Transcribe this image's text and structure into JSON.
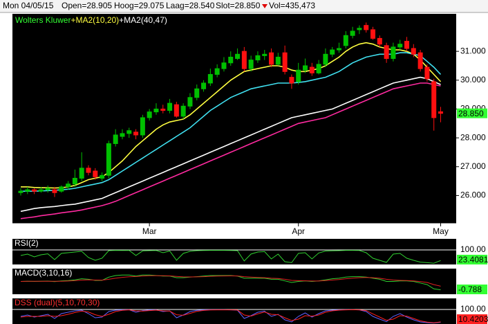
{
  "header": {
    "date": "Mon 04/05/15",
    "open": "Open=28.905",
    "high": "Hoog=29.075",
    "low": "Laag=28.540",
    "close": "Slot=28.850",
    "volume": "Vol=435,473"
  },
  "chart_data": [
    {
      "type": "candlestick",
      "title": "Wolters Kluwer",
      "legend": [
        "+MA2(10,20)",
        "+MA2(40,47)"
      ],
      "title_color": "#33ff33",
      "categories": [
        null,
        null,
        null,
        null,
        null,
        null,
        null,
        null,
        null,
        null,
        null,
        null,
        null,
        null,
        null,
        null,
        null,
        null,
        null,
        "Mar",
        null,
        null,
        null,
        null,
        null,
        null,
        null,
        null,
        null,
        null,
        null,
        null,
        null,
        null,
        null,
        null,
        null,
        null,
        null,
        null,
        null,
        "Apr",
        null,
        null,
        null,
        null,
        null,
        null,
        null,
        null,
        null,
        null,
        null,
        null,
        null,
        null,
        null,
        null,
        null,
        null,
        null,
        null,
        "May"
      ],
      "open": [
        26.1,
        26.15,
        26.2,
        26.15,
        26.2,
        26.2,
        26.15,
        26.3,
        26.4,
        26.6,
        26.95,
        26.85,
        26.6,
        26.7,
        27.8,
        28.05,
        28.15,
        28.2,
        28.1,
        28.7,
        28.9,
        29.0,
        28.95,
        29.15,
        28.75,
        29.1,
        29.4,
        29.7,
        29.9,
        30.2,
        30.4,
        30.6,
        30.75,
        31.0,
        30.4,
        30.7,
        30.85,
        30.95,
        30.55,
        30.95,
        30.1,
        29.95,
        30.35,
        30.45,
        30.25,
        30.55,
        30.9,
        31.05,
        31.2,
        31.55,
        31.75,
        31.9,
        31.75,
        31.45,
        31.2,
        30.75,
        31.15,
        31.35,
        31.1,
        30.95,
        30.45,
        29.95,
        28.905
      ],
      "high": [
        26.25,
        26.3,
        26.25,
        26.3,
        26.35,
        26.3,
        26.35,
        26.5,
        26.9,
        27.5,
        27.05,
        26.95,
        26.8,
        27.9,
        28.3,
        28.3,
        28.35,
        28.3,
        28.8,
        29.0,
        29.2,
        29.15,
        29.35,
        29.25,
        29.2,
        29.55,
        29.85,
        30.0,
        30.4,
        30.55,
        30.8,
        31.0,
        31.1,
        31.15,
        30.85,
        31.0,
        31.05,
        31.1,
        30.95,
        31.2,
        30.2,
        30.6,
        30.75,
        30.6,
        30.7,
        31.1,
        31.15,
        31.3,
        31.7,
        31.85,
        31.9,
        32.0,
        31.85,
        31.55,
        31.3,
        31.3,
        31.4,
        31.5,
        31.25,
        31.05,
        30.55,
        30.05,
        29.075
      ],
      "low": [
        26.0,
        26.05,
        26.05,
        26.1,
        26.1,
        25.95,
        26.1,
        26.2,
        26.3,
        26.5,
        26.7,
        26.55,
        26.5,
        26.6,
        27.7,
        27.95,
        28.0,
        27.95,
        28.0,
        28.6,
        28.8,
        28.85,
        28.85,
        28.7,
        28.65,
        29.0,
        29.3,
        29.6,
        29.8,
        30.1,
        30.3,
        30.5,
        30.7,
        30.3,
        30.3,
        30.6,
        30.7,
        30.45,
        30.5,
        30.2,
        29.7,
        29.85,
        30.25,
        30.15,
        30.2,
        30.45,
        30.8,
        30.95,
        31.1,
        31.45,
        31.6,
        31.65,
        31.4,
        31.15,
        30.6,
        30.65,
        31.05,
        31.0,
        30.8,
        30.3,
        29.95,
        28.25,
        28.54
      ],
      "close": [
        26.15,
        26.2,
        26.15,
        26.2,
        26.25,
        26.1,
        26.3,
        26.4,
        26.6,
        26.95,
        26.8,
        26.65,
        26.7,
        27.8,
        28.1,
        28.15,
        28.25,
        28.1,
        28.7,
        28.9,
        29.0,
        28.95,
        29.2,
        28.75,
        29.1,
        29.4,
        29.7,
        29.9,
        30.2,
        30.4,
        30.6,
        30.8,
        30.9,
        30.4,
        30.7,
        30.85,
        30.9,
        30.55,
        30.8,
        30.3,
        29.9,
        30.35,
        30.5,
        30.25,
        30.55,
        30.9,
        31.05,
        31.1,
        31.55,
        31.7,
        31.8,
        31.75,
        31.45,
        31.25,
        30.75,
        31.15,
        31.25,
        31.1,
        30.9,
        30.4,
        30.05,
        28.7,
        28.85
      ],
      "up_color": "#00c000",
      "down_color": "#ff1010",
      "last_price_label": "28.850",
      "last_price_color": "#33ff33",
      "series": [
        {
          "color": "#ffff40",
          "values": [
            26.3,
            26.3,
            26.28,
            26.27,
            26.27,
            26.26,
            26.27,
            26.3,
            26.35,
            26.45,
            26.55,
            26.6,
            26.65,
            26.8,
            27.0,
            27.2,
            27.45,
            27.7,
            27.9,
            28.1,
            28.3,
            28.45,
            28.55,
            28.6,
            28.65,
            28.8,
            29.0,
            29.2,
            29.4,
            29.6,
            29.8,
            30.0,
            30.15,
            30.3,
            30.35,
            30.4,
            30.45,
            30.5,
            30.5,
            30.45,
            30.35,
            30.3,
            30.3,
            30.35,
            30.4,
            30.5,
            30.65,
            30.8,
            31.0,
            31.15,
            31.25,
            31.3,
            31.25,
            31.15,
            31.1,
            31.05,
            31.05,
            31.0,
            30.9,
            30.7,
            30.45,
            30.2,
            29.95
          ]
        },
        {
          "color": "#40e0f0",
          "values": [
            26.15,
            26.15,
            26.15,
            26.16,
            26.17,
            26.18,
            26.2,
            26.22,
            26.25,
            26.3,
            26.35,
            26.4,
            26.45,
            26.55,
            26.7,
            26.85,
            27.0,
            27.15,
            27.3,
            27.45,
            27.6,
            27.75,
            27.9,
            28.05,
            28.2,
            28.35,
            28.55,
            28.75,
            28.95,
            29.1,
            29.25,
            29.4,
            29.5,
            29.6,
            29.7,
            29.75,
            29.8,
            29.85,
            29.9,
            29.9,
            29.9,
            29.92,
            29.95,
            30.0,
            30.05,
            30.1,
            30.2,
            30.3,
            30.45,
            30.6,
            30.7,
            30.8,
            30.85,
            30.9,
            30.9,
            30.9,
            30.95,
            30.95,
            30.9,
            30.85,
            30.65,
            30.45,
            30.2
          ]
        },
        {
          "color": "#ffffff",
          "values": [
            25.45,
            25.5,
            25.55,
            25.58,
            25.6,
            25.62,
            25.65,
            25.68,
            25.7,
            25.75,
            25.8,
            25.85,
            25.9,
            26.0,
            26.1,
            26.2,
            26.3,
            26.4,
            26.5,
            26.6,
            26.7,
            26.8,
            26.9,
            27.0,
            27.1,
            27.2,
            27.3,
            27.4,
            27.5,
            27.6,
            27.7,
            27.8,
            27.9,
            28.0,
            28.1,
            28.2,
            28.3,
            28.4,
            28.5,
            28.6,
            28.7,
            28.75,
            28.8,
            28.85,
            28.9,
            28.95,
            29.0,
            29.1,
            29.2,
            29.3,
            29.4,
            29.5,
            29.6,
            29.7,
            29.8,
            29.9,
            29.95,
            30.0,
            30.05,
            30.1,
            30.05,
            29.95,
            29.85
          ]
        },
        {
          "color": "#ff2aa0",
          "values": [
            25.2,
            25.23,
            25.26,
            25.3,
            25.33,
            25.36,
            25.4,
            25.43,
            25.46,
            25.5,
            25.55,
            25.6,
            25.65,
            25.72,
            25.8,
            25.9,
            26.0,
            26.1,
            26.2,
            26.3,
            26.4,
            26.5,
            26.6,
            26.7,
            26.8,
            26.9,
            27.0,
            27.1,
            27.2,
            27.3,
            27.4,
            27.5,
            27.6,
            27.7,
            27.8,
            27.9,
            28.0,
            28.1,
            28.2,
            28.3,
            28.4,
            28.5,
            28.55,
            28.6,
            28.65,
            28.7,
            28.8,
            28.9,
            29.0,
            29.1,
            29.2,
            29.3,
            29.4,
            29.5,
            29.6,
            29.7,
            29.75,
            29.8,
            29.85,
            29.9,
            29.9,
            29.85,
            29.8
          ]
        }
      ],
      "ylim": [
        25.05,
        32.3
      ],
      "yticks": [
        {
          "value": 26,
          "label": "26.000"
        },
        {
          "value": 27,
          "label": "27.000"
        },
        {
          "value": 28,
          "label": "28.000"
        },
        {
          "value": 29,
          "label": "29.000"
        },
        {
          "value": 30,
          "label": "30.000"
        },
        {
          "value": 31,
          "label": "31.000"
        }
      ],
      "grid": false
    },
    {
      "type": "line",
      "title": "RSI(2)",
      "title_color": "#ffffff",
      "ylim": [
        -5,
        180
      ],
      "yticks": [
        {
          "value": 100,
          "label": "100.00"
        }
      ],
      "grid": true,
      "last_label_series": 0,
      "series": [
        {
          "color": "#30d030",
          "values": [
            60,
            70,
            50,
            65,
            72,
            30,
            75,
            80,
            85,
            90,
            45,
            25,
            40,
            95,
            97,
            96,
            97,
            60,
            93,
            95,
            96,
            80,
            92,
            25,
            75,
            90,
            95,
            96,
            97,
            97,
            97,
            96,
            95,
            20,
            70,
            85,
            88,
            35,
            70,
            15,
            8,
            75,
            80,
            35,
            78,
            92,
            94,
            95,
            97,
            97,
            96,
            80,
            40,
            25,
            10,
            70,
            75,
            40,
            25,
            12,
            8,
            4,
            23.4081
          ]
        }
      ],
      "label_color": "#33ff33"
    },
    {
      "type": "line",
      "title": "MACD(3,10,16)",
      "title_color": "#ffffff",
      "ylim": [
        -1.2,
        1.2
      ],
      "yticks": [],
      "grid": false,
      "last_label_series": 0,
      "series": [
        {
          "color": "#30d030",
          "values": [
            0.0,
            0.02,
            0.0,
            0.02,
            0.03,
            -0.02,
            0.05,
            0.08,
            0.15,
            0.25,
            0.2,
            0.1,
            0.1,
            0.4,
            0.55,
            0.6,
            0.6,
            0.5,
            0.6,
            0.6,
            0.55,
            0.5,
            0.5,
            0.35,
            0.35,
            0.4,
            0.45,
            0.5,
            0.55,
            0.55,
            0.55,
            0.55,
            0.5,
            0.3,
            0.3,
            0.3,
            0.3,
            0.2,
            0.2,
            0.05,
            -0.1,
            0.0,
            0.05,
            0.0,
            0.05,
            0.15,
            0.25,
            0.3,
            0.4,
            0.45,
            0.45,
            0.4,
            0.3,
            0.2,
            0.0,
            0.0,
            0.05,
            0.05,
            0.0,
            -0.15,
            -0.3,
            -0.7,
            -0.788
          ]
        },
        {
          "color": "#e02020",
          "values": [
            0.0,
            0.01,
            0.01,
            0.01,
            0.02,
            0.01,
            0.02,
            0.04,
            0.07,
            0.12,
            0.14,
            0.13,
            0.12,
            0.2,
            0.3,
            0.38,
            0.44,
            0.46,
            0.5,
            0.53,
            0.54,
            0.53,
            0.52,
            0.47,
            0.43,
            0.42,
            0.43,
            0.45,
            0.48,
            0.5,
            0.51,
            0.52,
            0.51,
            0.45,
            0.4,
            0.37,
            0.35,
            0.3,
            0.27,
            0.2,
            0.1,
            0.07,
            0.06,
            0.04,
            0.04,
            0.08,
            0.13,
            0.18,
            0.25,
            0.3,
            0.35,
            0.37,
            0.35,
            0.3,
            0.2,
            0.13,
            0.1,
            0.08,
            0.05,
            -0.02,
            -0.1,
            -0.3,
            -0.45
          ]
        }
      ],
      "label_color": "#33ff33"
    },
    {
      "type": "line",
      "title": "DSS (dual)(5,10,70,30)",
      "title_color": "#ff3030",
      "ylim": [
        -5,
        180
      ],
      "yticks": [
        {
          "value": 100,
          "label": "100.00"
        }
      ],
      "grid": true,
      "last_label_series": 1,
      "series": [
        {
          "color": "#6060ff",
          "values": [
            50,
            60,
            45,
            55,
            65,
            35,
            70,
            80,
            90,
            95,
            70,
            40,
            45,
            85,
            95,
            97,
            98,
            80,
            92,
            96,
            97,
            85,
            90,
            40,
            60,
            85,
            94,
            97,
            98,
            98,
            98,
            97,
            95,
            35,
            55,
            80,
            88,
            50,
            65,
            25,
            10,
            50,
            75,
            45,
            70,
            90,
            95,
            97,
            98,
            98,
            97,
            85,
            50,
            30,
            12,
            50,
            70,
            45,
            25,
            10,
            5,
            2,
            8
          ]
        },
        {
          "color": "#ff2020",
          "values": [
            45,
            50,
            50,
            50,
            55,
            50,
            55,
            65,
            78,
            88,
            82,
            62,
            50,
            65,
            85,
            94,
            97,
            90,
            88,
            92,
            95,
            90,
            88,
            62,
            58,
            72,
            86,
            93,
            96,
            97,
            97,
            97,
            96,
            60,
            52,
            68,
            82,
            65,
            62,
            40,
            20,
            30,
            55,
            52,
            60,
            80,
            90,
            95,
            97,
            98,
            97,
            92,
            68,
            45,
            22,
            30,
            55,
            52,
            35,
            18,
            9,
            4,
            10.4203
          ]
        }
      ],
      "label_color": "#ff2020"
    }
  ]
}
